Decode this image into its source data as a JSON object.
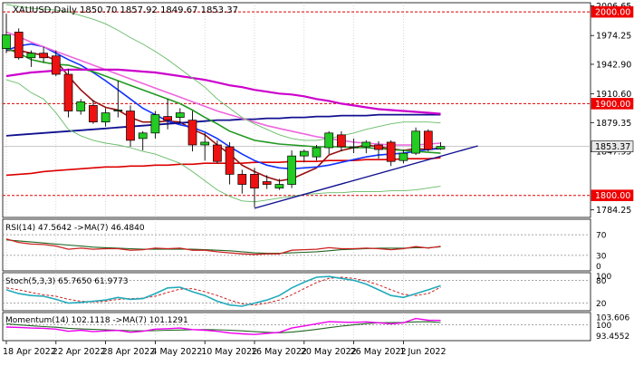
{
  "header": {
    "symbol": "XAUUSD,Daily",
    "ohlc": "1850.70 1857.92 1849.67 1853.37"
  },
  "colors": {
    "bull": "#22cc22",
    "bear": "#ee1111",
    "ma_red": "#dd0000",
    "ma_darkred": "#991111",
    "ma_blue": "#1133ff",
    "ma_navy": "#101090",
    "ma_green": "#229922",
    "ma_pink": "#ee66dd",
    "ma_magenta": "#cc00cc",
    "bb_green": "#66bb66",
    "hline_red": "#dd0000",
    "trend_navy": "#101090",
    "osc_teal": "#22aabb",
    "osc_red": "#cc2222",
    "osc_darkgreen": "#226622",
    "osc_magenta": "#ee00ee",
    "label_bg_red": "#ee0000",
    "label_bg_gray": "#e8e8e8"
  },
  "chart_data": {
    "type": "candlestick",
    "main": {
      "y_ticks": [
        2006.65,
        1974.25,
        1942.9,
        1910.6,
        1879.35,
        1847.95,
        1784.25
      ],
      "ylim": [
        1776,
        2010
      ],
      "horizontal_levels": [
        {
          "label": "2000.00",
          "value": 2000
        },
        {
          "label": "1900.00",
          "value": 1900
        },
        {
          "label": "1800.00",
          "value": 1800
        }
      ],
      "current_price": {
        "label": "1853.37",
        "value": 1853.37
      },
      "x_labels": [
        {
          "label": "18 Apr 2022",
          "index": 0
        },
        {
          "label": "22 Apr 2022",
          "index": 4
        },
        {
          "label": "28 Apr 2022",
          "index": 8
        },
        {
          "label": "4 May 2022",
          "index": 12
        },
        {
          "label": "10 May 2022",
          "index": 16
        },
        {
          "label": "16 May 2022",
          "index": 20
        },
        {
          "label": "20 May 2022",
          "index": 24
        },
        {
          "label": "26 May 2022",
          "index": 28
        },
        {
          "label": "1 Jun 2022",
          "index": 32
        }
      ],
      "candles": [
        {
          "o": 1960,
          "h": 1998,
          "l": 1955,
          "c": 1975
        },
        {
          "o": 1978,
          "h": 1982,
          "l": 1948,
          "c": 1950
        },
        {
          "o": 1950,
          "h": 1958,
          "l": 1940,
          "c": 1955
        },
        {
          "o": 1955,
          "h": 1962,
          "l": 1945,
          "c": 1950
        },
        {
          "o": 1952,
          "h": 1958,
          "l": 1930,
          "c": 1932
        },
        {
          "o": 1932,
          "h": 1938,
          "l": 1885,
          "c": 1892
        },
        {
          "o": 1892,
          "h": 1905,
          "l": 1888,
          "c": 1902
        },
        {
          "o": 1898,
          "h": 1904,
          "l": 1878,
          "c": 1880
        },
        {
          "o": 1880,
          "h": 1895,
          "l": 1875,
          "c": 1890
        },
        {
          "o": 1892,
          "h": 1925,
          "l": 1885,
          "c": 1893
        },
        {
          "o": 1892,
          "h": 1898,
          "l": 1853,
          "c": 1860
        },
        {
          "o": 1862,
          "h": 1870,
          "l": 1849,
          "c": 1868
        },
        {
          "o": 1868,
          "h": 1892,
          "l": 1862,
          "c": 1888
        },
        {
          "o": 1886,
          "h": 1905,
          "l": 1872,
          "c": 1882
        },
        {
          "o": 1885,
          "h": 1895,
          "l": 1878,
          "c": 1890
        },
        {
          "o": 1882,
          "h": 1892,
          "l": 1848,
          "c": 1855
        },
        {
          "o": 1855,
          "h": 1868,
          "l": 1838,
          "c": 1858
        },
        {
          "o": 1855,
          "h": 1860,
          "l": 1835,
          "c": 1837
        },
        {
          "o": 1853,
          "h": 1858,
          "l": 1812,
          "c": 1823
        },
        {
          "o": 1823,
          "h": 1828,
          "l": 1802,
          "c": 1812
        },
        {
          "o": 1823,
          "h": 1830,
          "l": 1787,
          "c": 1808
        },
        {
          "o": 1815,
          "h": 1822,
          "l": 1807,
          "c": 1812
        },
        {
          "o": 1808,
          "h": 1818,
          "l": 1806,
          "c": 1812
        },
        {
          "o": 1812,
          "h": 1849,
          "l": 1808,
          "c": 1843
        },
        {
          "o": 1843,
          "h": 1850,
          "l": 1836,
          "c": 1848
        },
        {
          "o": 1842,
          "h": 1855,
          "l": 1838,
          "c": 1852
        },
        {
          "o": 1852,
          "h": 1870,
          "l": 1845,
          "c": 1868
        },
        {
          "o": 1866,
          "h": 1870,
          "l": 1848,
          "c": 1853
        },
        {
          "o": 1853,
          "h": 1862,
          "l": 1846,
          "c": 1853
        },
        {
          "o": 1853,
          "h": 1860,
          "l": 1846,
          "c": 1858
        },
        {
          "o": 1855,
          "h": 1859,
          "l": 1840,
          "c": 1850
        },
        {
          "o": 1858,
          "h": 1860,
          "l": 1832,
          "c": 1837
        },
        {
          "o": 1838,
          "h": 1850,
          "l": 1835,
          "c": 1846
        },
        {
          "o": 1846,
          "h": 1874,
          "l": 1844,
          "c": 1870
        },
        {
          "o": 1870,
          "h": 1872,
          "l": 1848,
          "c": 1850
        },
        {
          "o": 1850.7,
          "h": 1857.92,
          "l": 1849.67,
          "c": 1853.37
        }
      ],
      "overlays": [
        {
          "color_key": "ma_red",
          "width": 1.6,
          "values": [
            1822,
            1823,
            1824,
            1826,
            1827,
            1828,
            1829,
            1830,
            1831,
            1831,
            1832,
            1832,
            1833,
            1833,
            1834,
            1834,
            1835,
            1835,
            1835,
            1835,
            1836,
            1836,
            1836,
            1837,
            1837,
            1837,
            1838,
            1838,
            1838,
            1839,
            1839,
            1839,
            1840,
            1840,
            1840,
            1841
          ]
        },
        {
          "color_key": "ma_darkred",
          "width": 1.6,
          "values": [
            1958,
            1958,
            1955,
            1953,
            1947,
            1930,
            1915,
            1903,
            1896,
            1893,
            1885,
            1880,
            1880,
            1881,
            1880,
            1872,
            1866,
            1855,
            1845,
            1833,
            1826,
            1820,
            1816,
            1818,
            1824,
            1830,
            1844,
            1849,
            1852,
            1855,
            1853,
            1851,
            1849,
            1851,
            1850,
            1852
          ]
        },
        {
          "color_key": "ma_blue",
          "width": 1.6,
          "values": [
            1958,
            1963,
            1965,
            1962,
            1955,
            1948,
            1942,
            1934,
            1925,
            1915,
            1905,
            1895,
            1888,
            1881,
            1877,
            1874,
            1869,
            1862,
            1853,
            1845,
            1838,
            1833,
            1830,
            1829,
            1830,
            1831,
            1833,
            1836,
            1839,
            1842,
            1844,
            1845,
            1846,
            1848,
            1850,
            1851
          ]
        },
        {
          "color_key": "ma_navy",
          "width": 1.8,
          "values": [
            1865,
            1866,
            1867,
            1868,
            1869,
            1870,
            1871,
            1872,
            1873,
            1874,
            1875,
            1876,
            1877,
            1878,
            1879,
            1880,
            1881,
            1882,
            1882,
            1883,
            1883,
            1884,
            1884,
            1885,
            1885,
            1886,
            1886,
            1887,
            1887,
            1887,
            1888,
            1888,
            1888,
            1888,
            1888,
            1888
          ]
        },
        {
          "color_key": "ma_green",
          "width": 1.6,
          "values": [
            1960,
            1955,
            1948,
            1945,
            1943,
            1942,
            1938,
            1935,
            1930,
            1925,
            1920,
            1915,
            1910,
            1905,
            1900,
            1893,
            1885,
            1878,
            1870,
            1865,
            1860,
            1858,
            1856,
            1855,
            1854,
            1853,
            1853,
            1853,
            1852,
            1852,
            1851,
            1850,
            1849,
            1848,
            1847,
            1846
          ]
        },
        {
          "color_key": "ma_pink",
          "width": 1.6,
          "values": [
            1978,
            1973,
            1967,
            1962,
            1957,
            1952,
            1947,
            1942,
            1937,
            1932,
            1927,
            1922,
            1917,
            1912,
            1907,
            1902,
            1897,
            1892,
            1888,
            1884,
            1880,
            1876,
            1873,
            1870,
            1867,
            1864,
            1862,
            1860,
            1858,
            1857,
            1856,
            1855,
            1855,
            1855,
            1856,
            1857
          ]
        },
        {
          "color_key": "ma_magenta",
          "width": 2.2,
          "values": [
            1930,
            1932,
            1934,
            1935,
            1936,
            1937,
            1937,
            1937,
            1937,
            1937,
            1936,
            1935,
            1934,
            1932,
            1930,
            1928,
            1926,
            1923,
            1920,
            1918,
            1915,
            1913,
            1911,
            1910,
            1908,
            1905,
            1903,
            1900,
            1898,
            1896,
            1894,
            1893,
            1892,
            1891,
            1890,
            1889
          ]
        },
        {
          "color_key": "bb_green",
          "width": 0.9,
          "values": [
            2008,
            2006,
            2004,
            2003,
            2002,
            2000,
            1996,
            1992,
            1987,
            1980,
            1972,
            1965,
            1957,
            1948,
            1938,
            1928,
            1918,
            1905,
            1895,
            1885,
            1878,
            1872,
            1866,
            1862,
            1860,
            1860,
            1862,
            1865,
            1868,
            1872,
            1875,
            1878,
            1880,
            1880,
            1880,
            1879
          ]
        },
        {
          "color_key": "bb_green",
          "width": 0.9,
          "values": [
            1926,
            1922,
            1912,
            1905,
            1890,
            1872,
            1865,
            1860,
            1857,
            1855,
            1852,
            1848,
            1845,
            1840,
            1835,
            1826,
            1816,
            1806,
            1799,
            1794,
            1793,
            1795,
            1797,
            1799,
            1801,
            1802,
            1803,
            1803,
            1804,
            1804,
            1804,
            1805,
            1805,
            1806,
            1808,
            1810
          ]
        }
      ],
      "trendline": {
        "from": [
          20,
          1786
        ],
        "to": [
          38,
          1854
        ]
      }
    },
    "rsi": {
      "label": "RSI(14) 47.5642 ->MA(7) 46.4840",
      "y_ticks": [
        70,
        30,
        0
      ],
      "levels": [
        70,
        30
      ],
      "ylim": [
        0,
        100
      ],
      "rsi": [
        62,
        55,
        52,
        51,
        48,
        42,
        44,
        42,
        43,
        43,
        40,
        41,
        44,
        43,
        44,
        40,
        40,
        37,
        35,
        33,
        32,
        33,
        33,
        40,
        41,
        42,
        45,
        43,
        43,
        44,
        43,
        41,
        43,
        47,
        44,
        47.56
      ],
      "ma": [
        60,
        58,
        56,
        54,
        52,
        50,
        48,
        46,
        45,
        44,
        43,
        42,
        42,
        42,
        42,
        42,
        41,
        40,
        39,
        37,
        35,
        34,
        34,
        35,
        36,
        37,
        39,
        41,
        42,
        43,
        44,
        44,
        44,
        45,
        45,
        46.48
      ]
    },
    "stoch": {
      "label": "Stoch(5,3,3) 65.7650 61.9773",
      "y_ticks": [
        100,
        80,
        20
      ],
      "levels": [
        80,
        20
      ],
      "ylim": [
        0,
        100
      ],
      "k": [
        55,
        45,
        40,
        38,
        30,
        20,
        22,
        25,
        28,
        35,
        30,
        32,
        45,
        60,
        62,
        50,
        40,
        25,
        15,
        12,
        20,
        28,
        40,
        60,
        75,
        88,
        90,
        85,
        80,
        70,
        55,
        40,
        35,
        45,
        55,
        65.77
      ],
      "d": [
        60,
        55,
        48,
        42,
        38,
        30,
        25,
        23,
        25,
        30,
        32,
        33,
        38,
        48,
        57,
        58,
        50,
        40,
        28,
        18,
        15,
        20,
        28,
        42,
        58,
        74,
        85,
        88,
        85,
        78,
        68,
        55,
        43,
        40,
        45,
        61.98
      ]
    },
    "momentum": {
      "label": "Momentum(14) 102.1118 ->MA(7) 101.1291",
      "y_ticks": [
        103.606,
        100,
        93.4552
      ],
      "level": 100,
      "ylim": [
        92.6,
        105.8
      ],
      "mom": [
        99,
        98.8,
        98.5,
        98.4,
        98,
        97,
        97.5,
        96.8,
        97.2,
        97.4,
        96.5,
        97,
        98,
        98.2,
        98.5,
        97.8,
        97.5,
        97,
        96.2,
        95.8,
        95.5,
        96,
        96.5,
        98.5,
        99.5,
        100.5,
        101.5,
        101.3,
        101.2,
        101.4,
        101,
        100.5,
        101,
        103,
        102.2,
        102.11
      ],
      "ma": [
        100.5,
        100,
        99.6,
        99.2,
        98.9,
        98.4,
        98.1,
        97.9,
        97.7,
        97.5,
        97.3,
        97.2,
        97.3,
        97.5,
        97.6,
        97.7,
        97.8,
        97.7,
        97.5,
        97.2,
        96.8,
        96.5,
        96.3,
        96.6,
        97.2,
        97.9,
        98.7,
        99.4,
        100,
        100.6,
        101,
        101.1,
        101.1,
        101.4,
        101.5,
        101.13
      ]
    }
  }
}
